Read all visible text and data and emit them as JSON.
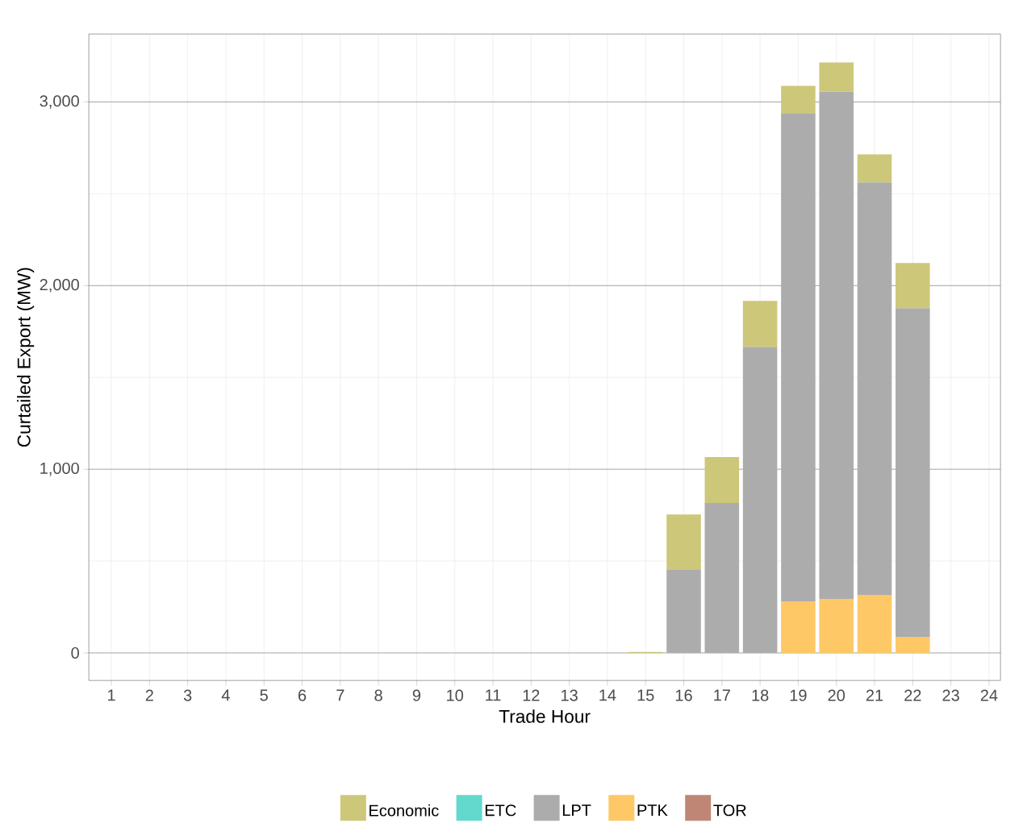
{
  "chart_data": {
    "type": "bar",
    "stacked": true,
    "xlabel": "Trade Hour",
    "ylabel": "Curtailed Export (MW)",
    "categories": [
      "1",
      "2",
      "3",
      "4",
      "5",
      "6",
      "7",
      "8",
      "9",
      "10",
      "11",
      "12",
      "13",
      "14",
      "15",
      "16",
      "17",
      "18",
      "19",
      "20",
      "21",
      "22",
      "23",
      "24"
    ],
    "series": [
      {
        "name": "TOR",
        "color": "#bf8676",
        "values": [
          null,
          null,
          null,
          null,
          null,
          null,
          null,
          null,
          null,
          null,
          null,
          null,
          null,
          null,
          null,
          null,
          null,
          null,
          null,
          null,
          null,
          null,
          null,
          null
        ]
      },
      {
        "name": "PTK",
        "color": "#fdc865",
        "values": [
          null,
          null,
          null,
          null,
          null,
          null,
          null,
          null,
          null,
          null,
          null,
          null,
          null,
          null,
          null,
          null,
          null,
          null,
          281,
          294,
          316,
          85,
          null,
          null
        ]
      },
      {
        "name": "LPT",
        "color": "#acacac",
        "values": [
          null,
          null,
          null,
          null,
          null,
          null,
          null,
          null,
          null,
          null,
          null,
          null,
          null,
          null,
          null,
          452,
          816,
          1667,
          2658,
          2763,
          2246,
          1792,
          null,
          null
        ]
      },
      {
        "name": "ETC",
        "color": "#62d9cc",
        "values": [
          null,
          null,
          null,
          null,
          null,
          null,
          null,
          null,
          null,
          null,
          null,
          null,
          null,
          null,
          null,
          null,
          null,
          null,
          null,
          null,
          null,
          null,
          null,
          null
        ]
      },
      {
        "name": "Economic",
        "color": "#cdc77a",
        "values": [
          null,
          null,
          null,
          null,
          null,
          null,
          null,
          null,
          null,
          null,
          null,
          null,
          null,
          null,
          5,
          302,
          250,
          250,
          149,
          158,
          153,
          246,
          null,
          null
        ]
      }
    ],
    "ylim": [
      -150,
      3370
    ],
    "yticks": [
      0,
      {
        "value": 1000,
        "label": "1,000"
      },
      {
        "value": 2000,
        "label": "2,000"
      },
      {
        "value": 3000,
        "label": "3,000"
      }
    ],
    "grid": true,
    "legend": "bottom"
  }
}
